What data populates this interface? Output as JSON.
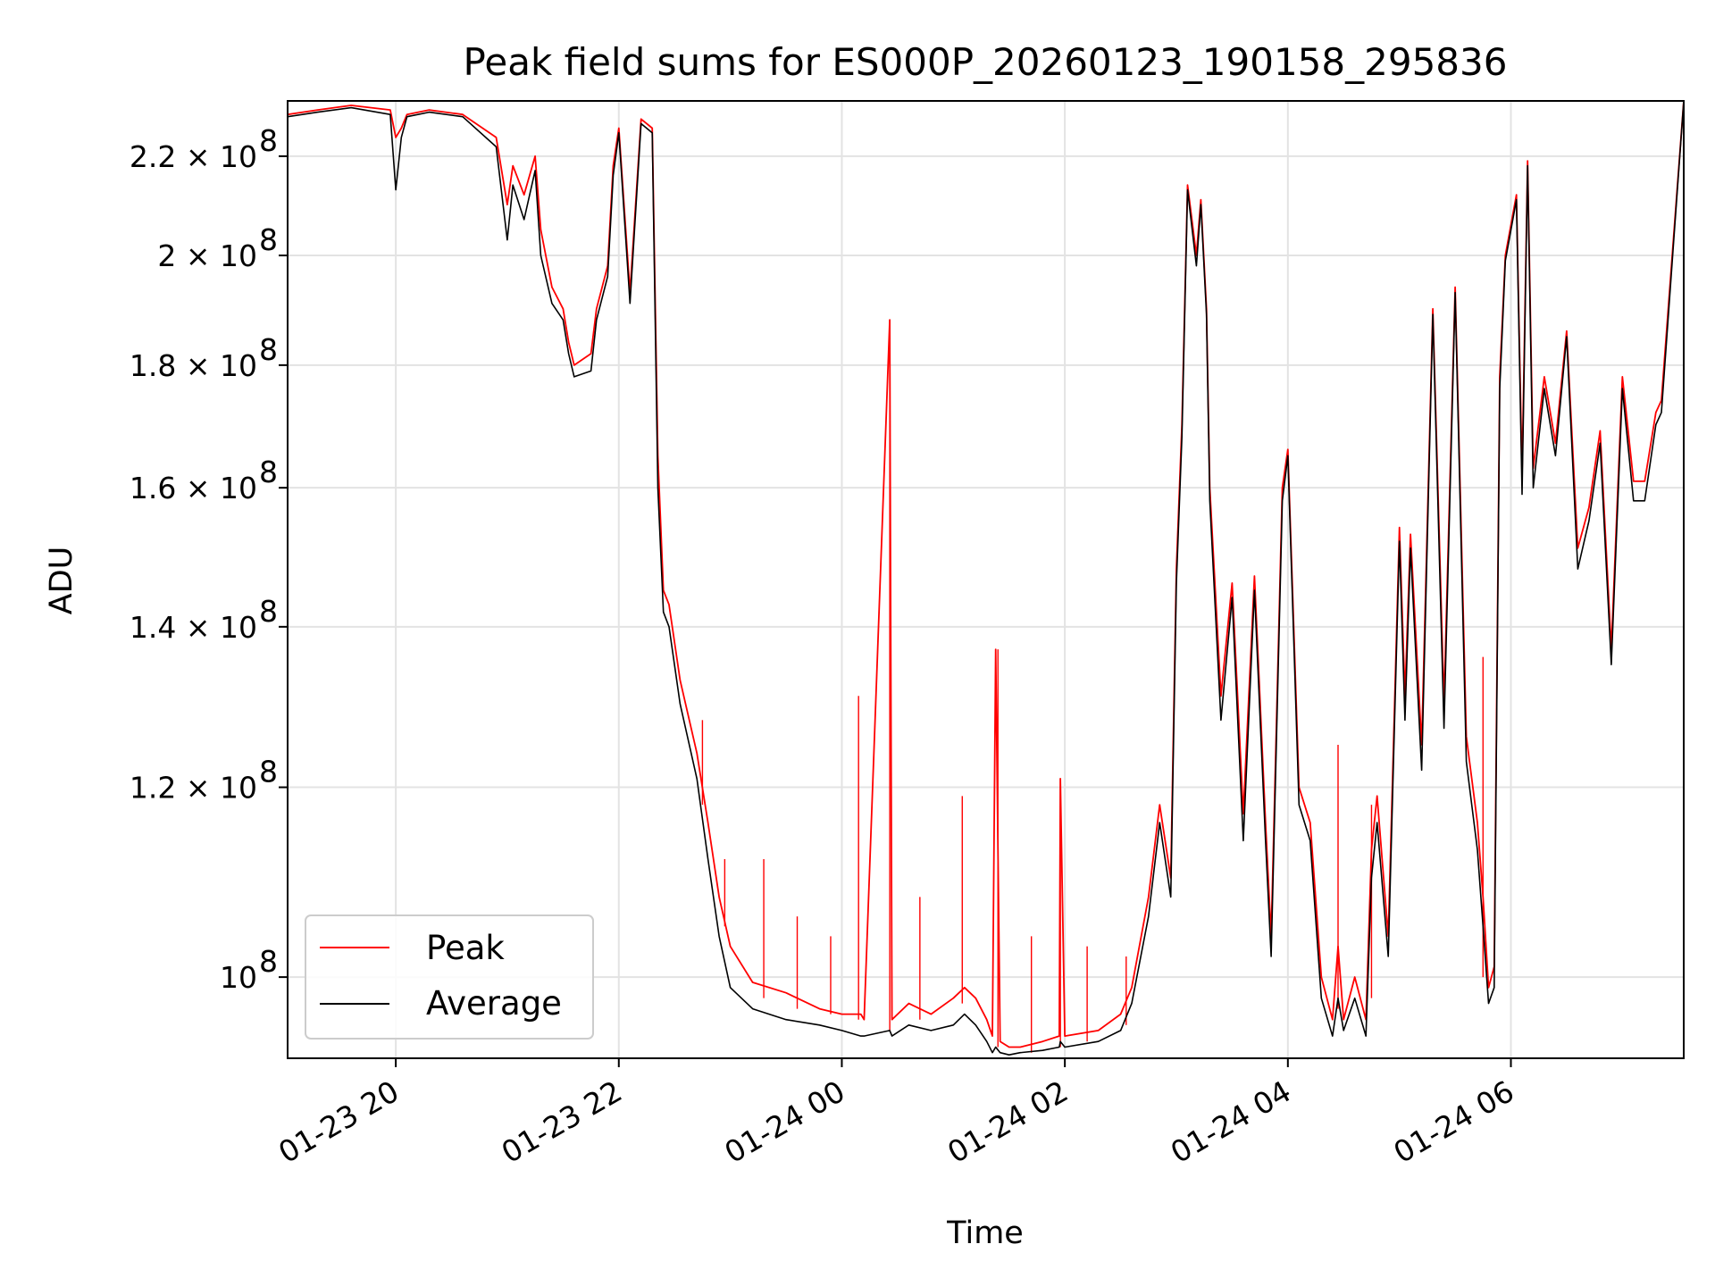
{
  "chart_data": {
    "type": "line",
    "title": "Peak field sums for ES000P_20260123_190158_295836",
    "xlabel": "Time",
    "ylabel": "ADU",
    "yscale": "log",
    "xlim": [
      19.03,
      31.55
    ],
    "ylim": [
      92500000,
      232000000
    ],
    "grid": true,
    "legend_position": "lower-left",
    "x_unit": "hours since 2026-01-23 00:00",
    "xticks": [
      {
        "value": 20,
        "label": "01-23 20"
      },
      {
        "value": 22,
        "label": "01-23 22"
      },
      {
        "value": 24,
        "label": "01-24 00"
      },
      {
        "value": 26,
        "label": "01-24 02"
      },
      {
        "value": 28,
        "label": "01-24 04"
      },
      {
        "value": 30,
        "label": "01-24 06"
      }
    ],
    "yticks": [
      {
        "value": 100000000,
        "mant": "10",
        "exp": "8"
      },
      {
        "value": 120000000,
        "mant": "1.2 × 10",
        "exp": "8"
      },
      {
        "value": 140000000,
        "mant": "1.4 × 10",
        "exp": "8"
      },
      {
        "value": 160000000,
        "mant": "1.6 × 10",
        "exp": "8"
      },
      {
        "value": 180000000,
        "mant": "1.8 × 10",
        "exp": "8"
      },
      {
        "value": 200000000,
        "mant": "2 × 10",
        "exp": "8"
      },
      {
        "value": 220000000,
        "mant": "2.2 × 10",
        "exp": "8"
      }
    ],
    "series": [
      {
        "name": "Peak",
        "color": "#ff0000",
        "x": [
          19.03,
          19.3,
          19.6,
          19.95,
          20.0,
          20.05,
          20.1,
          20.3,
          20.6,
          20.9,
          21.0,
          21.05,
          21.15,
          21.25,
          21.3,
          21.4,
          21.5,
          21.55,
          21.6,
          21.75,
          21.8,
          21.9,
          21.95,
          22.0,
          22.1,
          22.2,
          22.3,
          22.35,
          22.4,
          22.45,
          22.55,
          22.7,
          22.8,
          22.9,
          23.0,
          23.2,
          23.5,
          23.8,
          24.0,
          24.17,
          24.2,
          24.43,
          24.45,
          24.6,
          24.8,
          25.0,
          25.1,
          25.2,
          25.3,
          25.35,
          25.38,
          25.42,
          25.5,
          25.6,
          25.8,
          25.95,
          25.96,
          26.0,
          26.3,
          26.5,
          26.6,
          26.75,
          26.85,
          26.95,
          27.0,
          27.05,
          27.1,
          27.18,
          27.22,
          27.27,
          27.3,
          27.4,
          27.5,
          27.6,
          27.7,
          27.8,
          27.85,
          27.95,
          28.0,
          28.1,
          28.2,
          28.3,
          28.4,
          28.45,
          28.5,
          28.6,
          28.7,
          28.75,
          28.8,
          28.9,
          29.0,
          29.05,
          29.1,
          29.2,
          29.3,
          29.4,
          29.5,
          29.6,
          29.7,
          29.75,
          29.8,
          29.85,
          29.9,
          29.95,
          30.05,
          30.1,
          30.15,
          30.2,
          30.3,
          30.4,
          30.5,
          30.6,
          30.7,
          30.8,
          30.9,
          31.0,
          31.1,
          31.2,
          31.3,
          31.35,
          31.55
        ],
        "values": [
          229000000,
          230000000,
          231000000,
          230000000,
          224000000,
          226000000,
          229000000,
          230000000,
          229000000,
          224000000,
          210000000,
          218000000,
          212000000,
          220000000,
          205000000,
          194000000,
          190000000,
          184000000,
          180000000,
          182000000,
          190000000,
          198000000,
          218000000,
          226000000,
          193000000,
          228000000,
          226000000,
          165000000,
          145000000,
          143000000,
          133000000,
          124000000,
          116000000,
          108000000,
          103000000,
          99500000,
          98500000,
          97000000,
          96500000,
          96500000,
          96000000,
          188000000,
          96000000,
          97500000,
          96500000,
          98000000,
          99000000,
          98000000,
          96000000,
          94500000,
          137000000,
          94000000,
          93500000,
          93500000,
          94000000,
          94500000,
          121000000,
          94500000,
          95000000,
          96500000,
          99000000,
          108000000,
          118000000,
          110000000,
          148000000,
          170000000,
          214000000,
          200000000,
          211000000,
          190000000,
          160000000,
          131000000,
          146000000,
          117000000,
          147000000,
          116000000,
          104000000,
          160000000,
          166000000,
          120000000,
          116000000,
          100000000,
          96000000,
          103000000,
          96000000,
          100000000,
          96000000,
          113000000,
          119000000,
          104000000,
          154000000,
          131000000,
          153000000,
          125000000,
          190000000,
          130000000,
          194000000,
          126000000,
          116000000,
          108000000,
          99000000,
          101000000,
          178000000,
          200000000,
          212000000,
          162000000,
          219000000,
          163000000,
          178000000,
          167000000,
          186000000,
          151000000,
          157000000,
          169000000,
          137000000,
          178000000,
          161000000,
          161000000,
          172000000,
          174000000,
          232000000
        ]
      },
      {
        "name": "Average",
        "color": "#000000",
        "x": [
          19.03,
          19.3,
          19.6,
          19.95,
          20.0,
          20.05,
          20.1,
          20.3,
          20.6,
          20.9,
          21.0,
          21.05,
          21.15,
          21.25,
          21.3,
          21.4,
          21.5,
          21.55,
          21.6,
          21.75,
          21.8,
          21.9,
          21.95,
          22.0,
          22.1,
          22.2,
          22.3,
          22.35,
          22.4,
          22.45,
          22.55,
          22.7,
          22.8,
          22.9,
          23.0,
          23.2,
          23.5,
          23.8,
          24.0,
          24.17,
          24.2,
          24.43,
          24.45,
          24.6,
          24.8,
          25.0,
          25.1,
          25.2,
          25.3,
          25.35,
          25.38,
          25.42,
          25.5,
          25.6,
          25.8,
          25.95,
          25.96,
          26.0,
          26.3,
          26.5,
          26.6,
          26.75,
          26.85,
          26.95,
          27.0,
          27.05,
          27.1,
          27.18,
          27.22,
          27.27,
          27.3,
          27.4,
          27.5,
          27.6,
          27.7,
          27.8,
          27.85,
          27.95,
          28.0,
          28.1,
          28.2,
          28.3,
          28.4,
          28.45,
          28.5,
          28.6,
          28.7,
          28.75,
          28.8,
          28.9,
          29.0,
          29.05,
          29.1,
          29.2,
          29.3,
          29.4,
          29.5,
          29.6,
          29.7,
          29.75,
          29.8,
          29.85,
          29.9,
          29.95,
          30.05,
          30.1,
          30.15,
          30.2,
          30.3,
          30.4,
          30.5,
          30.6,
          30.7,
          30.8,
          30.9,
          31.0,
          31.1,
          31.2,
          31.3,
          31.35,
          31.55
        ],
        "values": [
          228500000,
          229500000,
          230500000,
          229000000,
          213000000,
          224000000,
          228500000,
          229500000,
          228500000,
          222000000,
          203000000,
          214000000,
          207000000,
          217000000,
          200000000,
          191000000,
          188000000,
          182000000,
          178000000,
          179000000,
          188000000,
          196000000,
          216000000,
          225000000,
          191000000,
          227000000,
          225000000,
          160000000,
          142000000,
          140000000,
          130000000,
          121000000,
          112000000,
          104000000,
          99000000,
          97000000,
          96000000,
          95500000,
          95000000,
          94500000,
          94500000,
          95000000,
          94500000,
          95500000,
          95000000,
          95500000,
          96500000,
          95500000,
          94000000,
          93000000,
          93500000,
          93000000,
          92800000,
          93000000,
          93200000,
          93500000,
          94000000,
          93500000,
          94000000,
          95000000,
          97500000,
          106000000,
          116000000,
          108000000,
          146000000,
          168000000,
          213000000,
          198000000,
          210000000,
          189000000,
          158000000,
          128000000,
          144000000,
          114000000,
          145000000,
          114000000,
          102000000,
          158000000,
          165000000,
          118000000,
          114000000,
          98000000,
          94500000,
          98000000,
          95000000,
          98000000,
          94500000,
          110000000,
          116000000,
          102000000,
          152000000,
          128000000,
          151000000,
          122000000,
          189000000,
          127000000,
          193000000,
          123000000,
          113000000,
          105000000,
          97500000,
          99000000,
          176000000,
          199000000,
          211000000,
          159000000,
          218000000,
          160000000,
          176000000,
          165000000,
          185000000,
          148000000,
          155000000,
          167000000,
          135000000,
          176000000,
          158000000,
          158000000,
          170000000,
          172000000,
          232000000
        ]
      }
    ],
    "spikes": [
      {
        "x": 22.75,
        "base": 118000000,
        "top": 128000000
      },
      {
        "x": 22.95,
        "base": 105000000,
        "top": 112000000
      },
      {
        "x": 23.3,
        "base": 98000000,
        "top": 112000000
      },
      {
        "x": 23.6,
        "base": 97000000,
        "top": 106000000
      },
      {
        "x": 23.9,
        "base": 96500000,
        "top": 104000000
      },
      {
        "x": 24.15,
        "base": 96000000,
        "top": 131000000
      },
      {
        "x": 24.43,
        "base": 95000000,
        "top": 188000000
      },
      {
        "x": 24.7,
        "base": 96000000,
        "top": 108000000
      },
      {
        "x": 25.08,
        "base": 97500000,
        "top": 119000000
      },
      {
        "x": 25.4,
        "base": 93500000,
        "top": 137000000
      },
      {
        "x": 25.7,
        "base": 93000000,
        "top": 104000000
      },
      {
        "x": 25.96,
        "base": 93500000,
        "top": 121000000
      },
      {
        "x": 26.2,
        "base": 94000000,
        "top": 103000000
      },
      {
        "x": 26.55,
        "base": 95500000,
        "top": 102000000
      },
      {
        "x": 28.45,
        "base": 97000000,
        "top": 125000000
      },
      {
        "x": 28.75,
        "base": 98000000,
        "top": 118000000
      },
      {
        "x": 29.75,
        "base": 100000000,
        "top": 136000000
      }
    ]
  }
}
